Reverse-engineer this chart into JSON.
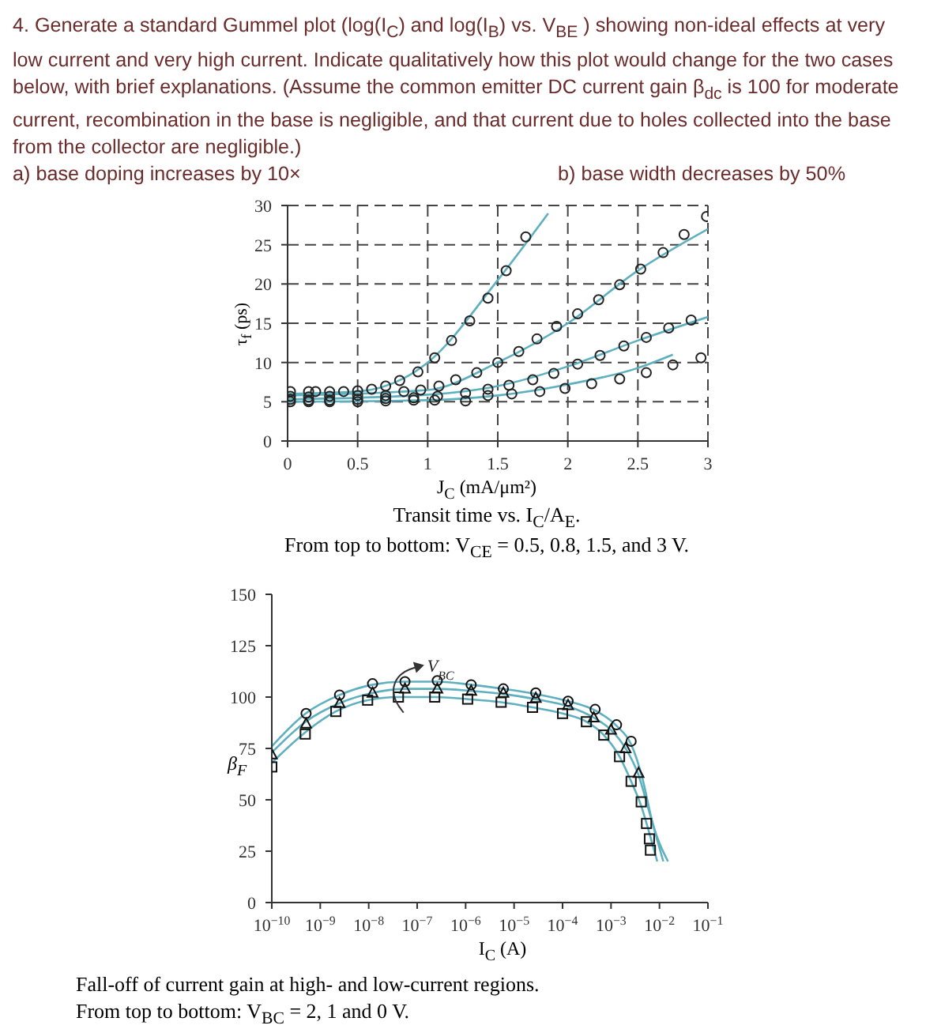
{
  "chart_data": [
    {
      "type": "scatter",
      "title": "Transit time vs. I$_{C}$/A$_{E}$.",
      "subtitle": "From top to bottom: V$_{CE}$ = 0.5, 0.8, 1.5, and 3 V.",
      "annotations": [
        "4. Generate a standard Gummel plot (log(I$_{C}$) and log(I$_{B}$) vs. V$_{BE}$ ) showing non-ideal effects at very low current and very high current.  Indicate qualitatively how this plot would change for the two cases below, with brief explanations.  (Assume the common emitter DC current gain β$_{dc}$ is 100 for moderate current, recombination in the base is negligible, and that current due to holes collected into the base from the collector are negligible.)",
        "a) base doping increases by 10×",
        "b) base width decreases by 50%"
      ],
      "xlabel": "J$_{C}$ (mA/μm²)",
      "ylabel": "τ$_{f}$ (ps)",
      "xlim": [
        0,
        3
      ],
      "xticks": [
        0,
        0.5,
        1,
        1.5,
        2,
        2.5,
        3
      ],
      "ylim": [
        0,
        30
      ],
      "yticks": [
        0,
        5,
        10,
        15,
        20,
        25,
        30
      ],
      "grid": true,
      "series": [
        {
          "type": "line",
          "color": "#5fb0bf",
          "marker": "none",
          "line_style": "solid",
          "x": [
            0,
            0.5,
            1,
            1.5,
            1.86
          ],
          "values": [
            6,
            6.3,
            10,
            20.5,
            29
          ]
        },
        {
          "type": "line",
          "color": "#5fb0bf",
          "marker": "none",
          "line_style": "solid",
          "x": [
            0,
            1,
            1.5,
            2,
            2.5,
            3
          ],
          "values": [
            5.8,
            6.5,
            10,
            15,
            21.7,
            27
          ]
        },
        {
          "type": "line",
          "color": "#5fb0bf",
          "marker": "none",
          "line_style": "solid",
          "x": [
            0,
            1,
            1.5,
            2,
            2.5,
            3
          ],
          "values": [
            5.3,
            5.9,
            7,
            9.5,
            12.8,
            15.8
          ]
        },
        {
          "type": "line",
          "color": "#5fb0bf",
          "marker": "none",
          "line_style": "solid",
          "x": [
            0,
            1,
            1.5,
            2,
            2.5,
            2.75
          ],
          "values": [
            5,
            5.2,
            5.8,
            7.2,
            9.3,
            11
          ]
        },
        {
          "type": "scatter",
          "color": "#222222",
          "marker": "circle",
          "x": [
            0.02,
            0.15,
            0.2,
            0.3,
            0.4,
            0.5,
            0.6,
            0.7,
            0.8,
            0.93,
            1.05,
            1.17,
            1.3,
            1.43,
            1.56,
            1.7
          ],
          "values": [
            6.3,
            6.3,
            6.3,
            6.3,
            6.3,
            6.4,
            6.6,
            7,
            7.7,
            8.8,
            10.6,
            12.8,
            15.3,
            18.2,
            21.7,
            26
          ]
        },
        {
          "type": "scatter",
          "color": "#222222",
          "marker": "circle",
          "x": [
            0.02,
            0.15,
            0.3,
            0.5,
            0.7,
            0.83,
            0.95,
            1.08,
            1.2,
            1.35,
            1.5,
            1.65,
            1.78,
            1.92,
            2.07,
            2.22,
            2.37,
            2.52,
            2.68,
            2.83,
            2.99
          ],
          "values": [
            5.7,
            5.6,
            5.7,
            5.8,
            5.8,
            6.3,
            6.5,
            7,
            7.8,
            8.7,
            10,
            11.4,
            13,
            14.6,
            16.2,
            18,
            19.9,
            21.9,
            24,
            26.3,
            28.6
          ]
        },
        {
          "type": "scatter",
          "color": "#222222",
          "marker": "circle",
          "x": [
            0.02,
            0.15,
            0.3,
            0.5,
            0.7,
            0.9,
            1.07,
            1.27,
            1.43,
            1.58,
            1.75,
            1.9,
            2.07,
            2.23,
            2.4,
            2.56,
            2.72,
            2.88
          ],
          "values": [
            5.3,
            5.2,
            5.2,
            5.3,
            5.4,
            5.5,
            5.7,
            6.1,
            6.6,
            7.1,
            7.8,
            8.6,
            9.8,
            10.9,
            12.1,
            13.2,
            14.4,
            15.4
          ]
        },
        {
          "type": "scatter",
          "color": "#222222",
          "marker": "circle",
          "x": [
            0.02,
            0.15,
            0.3,
            0.5,
            0.7,
            0.9,
            1.05,
            1.27,
            1.43,
            1.6,
            1.8,
            1.98,
            2.17,
            2.37,
            2.56,
            2.75,
            2.95
          ],
          "values": [
            5,
            5,
            5,
            5,
            5.1,
            5.2,
            5.2,
            5.1,
            5.8,
            6,
            6.3,
            6.7,
            7.3,
            7.9,
            8.7,
            9.7,
            10.6
          ]
        }
      ]
    },
    {
      "type": "scatter",
      "title": "Fall-off of current gain at high- and low-current regions.",
      "subtitle": "From top to bottom: V$_{BC}$ = 2, 1 and 0 V.",
      "annotations": [
        {
          "text": "V$_{BC}$",
          "x": 1.5e-07,
          "y": 114
        }
      ],
      "xlabel": "I$_{C}$ (A)",
      "ylabel": "β$_{F}$",
      "log": "x",
      "xlim": [
        1e-10,
        0.1
      ],
      "xticks": [
        {
          "value": 1e-10,
          "label": "10$^{−10}$"
        },
        {
          "value": 1e-09,
          "label": "10$^{−9}$"
        },
        {
          "value": 1e-08,
          "label": "10$^{−8}$"
        },
        {
          "value": 1e-07,
          "label": "10$^{−7}$"
        },
        {
          "value": 1e-06,
          "label": "10$^{−6}$"
        },
        {
          "value": 1e-05,
          "label": "10$^{−5}$"
        },
        {
          "value": 0.0001,
          "label": "10$^{−4}$"
        },
        {
          "value": 0.001,
          "label": "10$^{−3}$"
        },
        {
          "value": 0.01,
          "label": "10$^{−2}$"
        },
        {
          "value": 0.1,
          "label": "10$^{−1}$"
        }
      ],
      "ylim": [
        0,
        150
      ],
      "yticks": [
        0,
        25,
        50,
        75,
        100,
        125,
        150
      ],
      "series": [
        {
          "type": "line",
          "color": "#5fb0bf",
          "marker": "none",
          "line_style": "solid",
          "x": [
            1e-10,
            5e-10,
            2.5e-09,
            1.2e-08,
            5.6e-08,
            2.6e-07,
            1.3e-06,
            6e-06,
            2.8e-05,
            0.00013,
            0.00047,
            0.0013,
            0.0026,
            0.0045,
            0.007,
            0.015
          ],
          "values": [
            76,
            92,
            101,
            106,
            107.5,
            107.5,
            106,
            104,
            101.5,
            98,
            93.5,
            86,
            77,
            60,
            40,
            20
          ]
        },
        {
          "type": "line",
          "color": "#5fb0bf",
          "marker": "none",
          "line_style": "solid",
          "x": [
            1e-10,
            5e-10,
            2.5e-09,
            1.2e-08,
            5.6e-08,
            2.6e-07,
            1.3e-06,
            6e-06,
            2.8e-05,
            0.00013,
            0.00044,
            0.001,
            0.002,
            0.0037,
            0.006,
            0.012
          ],
          "values": [
            73,
            88,
            97,
            102,
            104,
            104,
            103,
            101.5,
            99,
            95.5,
            90,
            84,
            75,
            62,
            45,
            20
          ]
        },
        {
          "type": "line",
          "color": "#5fb0bf",
          "marker": "none",
          "line_style": "solid",
          "x": [
            1e-10,
            5e-10,
            2.1e-09,
            9.5e-09,
            4.1e-08,
            2.3e-07,
            1.1e-06,
            5.4e-06,
            2.4e-05,
            0.0001,
            0.00031,
            0.00071,
            0.0015,
            0.0026,
            0.0042,
            0.0065,
            0.009
          ],
          "values": [
            68,
            83,
            93,
            98.5,
            100,
            100,
            99,
            97.5,
            95,
            92,
            88,
            81.5,
            71,
            59,
            47,
            32,
            20
          ]
        },
        {
          "type": "scatter",
          "color": "#111111",
          "marker": "circle",
          "x": [
            5.1e-10,
            2.5e-09,
            1.2e-08,
            5.6e-08,
            2.6e-07,
            1.3e-06,
            6e-06,
            2.8e-05,
            0.00013,
            0.00047,
            0.0013,
            0.0026
          ],
          "values": [
            92,
            101,
            106.5,
            107.5,
            108,
            106,
            104,
            102,
            98,
            94,
            86.5,
            78.5
          ]
        },
        {
          "type": "scatter",
          "color": "#111111",
          "marker": "triangle",
          "x": [
            1e-10,
            5.1e-10,
            2.5e-09,
            1.2e-08,
            5.6e-08,
            2.6e-07,
            1.3e-06,
            6e-06,
            2.8e-05,
            0.00013,
            0.00044,
            0.001,
            0.002,
            0.0037
          ],
          "values": [
            72,
            87,
            97,
            102,
            104,
            104,
            103,
            102,
            99.5,
            96,
            90,
            84,
            75,
            63
          ]
        },
        {
          "type": "scatter",
          "color": "#111111",
          "marker": "square",
          "x": [
            1e-10,
            4.9e-10,
            2.1e-09,
            9.5e-09,
            4.1e-08,
            2.3e-07,
            1.1e-06,
            5.4e-06,
            2.4e-05,
            0.0001,
            0.00031,
            0.00071,
            0.0015,
            0.0026,
            0.0042,
            0.0054,
            0.0062,
            0.0065
          ],
          "values": [
            66,
            82,
            93,
            98.5,
            100,
            100,
            99,
            97.5,
            95,
            92,
            88,
            81.5,
            71,
            59,
            49,
            38.5,
            31,
            25.5
          ]
        }
      ]
    }
  ]
}
